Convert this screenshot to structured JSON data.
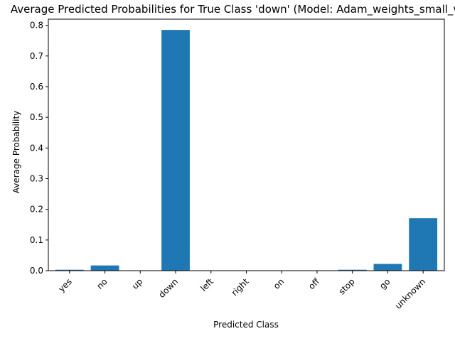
{
  "colors": {
    "bar": "#1f77b4",
    "axis": "#000000",
    "background": "#ffffff"
  },
  "chart_data": {
    "type": "bar",
    "title": "Average Predicted Probabilities for True Class 'down' (Model: Adam_weights_small_validation)",
    "xlabel": "Predicted Class",
    "ylabel": "Average Probability",
    "categories": [
      "yes",
      "no",
      "up",
      "down",
      "left",
      "right",
      "on",
      "off",
      "stop",
      "go",
      "unknown"
    ],
    "values": [
      0.003,
      0.017,
      0.0005,
      0.785,
      0.0005,
      0.0005,
      0.0005,
      0.0005,
      0.003,
      0.022,
      0.171
    ],
    "ylim": [
      0,
      0.82
    ],
    "yticks": [
      0.0,
      0.1,
      0.2,
      0.3,
      0.4,
      0.5,
      0.6,
      0.7,
      0.8
    ],
    "ytick_labels": [
      "0.0",
      "0.1",
      "0.2",
      "0.3",
      "0.4",
      "0.5",
      "0.6",
      "0.7",
      "0.8"
    ],
    "grid": false,
    "legend": "none",
    "xtick_rotation": 45
  }
}
